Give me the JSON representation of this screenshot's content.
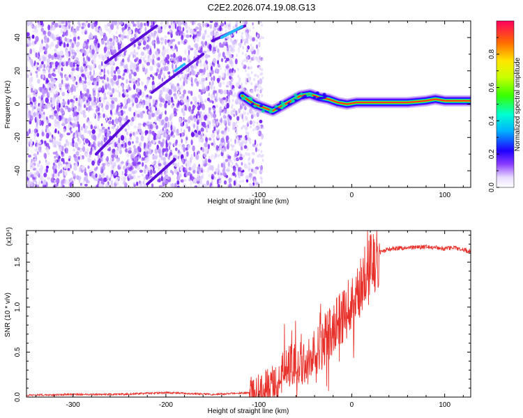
{
  "title": "C2E2.2026.074.19.08.G13",
  "chart_data": [
    {
      "type": "heatmap",
      "name": "spectrogram",
      "xlabel": "Height of straight line (km)",
      "ylabel": "Frequency (Hz)",
      "xlim": [
        -350,
        128
      ],
      "ylim": [
        -50,
        50
      ],
      "xticks": [
        -300,
        -200,
        -100,
        0,
        100
      ],
      "xtick_labels": [
        "-300",
        "-200",
        "-100",
        "0",
        "100"
      ],
      "yticks": [
        -40,
        -20,
        0,
        20,
        40
      ],
      "ytick_labels": [
        "-40",
        "-20",
        "0",
        "20",
        "40"
      ],
      "noise_region_km": [
        -350,
        -100
      ],
      "diagonal_streaks": [
        {
          "from": [
            -265,
            25
          ],
          "to": [
            -210,
            47
          ]
        },
        {
          "from": [
            -215,
            7
          ],
          "to": [
            -160,
            30
          ]
        },
        {
          "from": [
            -150,
            38
          ],
          "to": [
            -115,
            47
          ]
        },
        {
          "from": [
            -275,
            -30
          ],
          "to": [
            -240,
            -10
          ]
        },
        {
          "from": [
            -220,
            -48
          ],
          "to": [
            -190,
            -33
          ]
        }
      ],
      "signal_track": {
        "x": [
          -118,
          -105,
          -95,
          -85,
          -75,
          -65,
          -55,
          -45,
          -35,
          -25,
          -15,
          -5,
          5,
          20,
          40,
          60,
          80,
          90,
          100,
          128
        ],
        "y": [
          5,
          0,
          -2,
          -4,
          -1,
          2,
          5,
          6,
          4,
          3,
          1,
          0,
          1,
          1,
          1,
          1,
          2,
          3,
          2,
          2
        ]
      },
      "colorbar": {
        "label": "Normalized spectral amplitude",
        "range": [
          0,
          1
        ],
        "ticks": [
          0.0,
          0.2,
          0.4,
          0.6,
          0.8
        ],
        "tick_labels": [
          "0.0",
          "0.2",
          "0.4",
          "0.6",
          "0.8"
        ]
      }
    },
    {
      "type": "line",
      "name": "snr",
      "xlabel": "Height of straight line (km)",
      "ylabel": "SNR (10 * v/v)",
      "scale_label": "(x10⁴)",
      "xlim": [
        -350,
        128
      ],
      "ylim": [
        0,
        1.85
      ],
      "xticks": [
        -300,
        -200,
        -100,
        0,
        100
      ],
      "xtick_labels": [
        "-300",
        "-200",
        "-100",
        "0",
        "100"
      ],
      "yticks": [
        0.0,
        0.5,
        1.0,
        1.5
      ],
      "ytick_labels": [
        "0.0",
        "0.5",
        "1.0",
        "1.5"
      ],
      "color": "#e8302a",
      "series": [
        {
          "name": "SNR",
          "x": [
            -350,
            -300,
            -250,
            -200,
            -150,
            -110,
            -100,
            -90,
            -80,
            -70,
            -60,
            -50,
            -40,
            -30,
            -20,
            -10,
            0,
            10,
            20,
            30,
            40,
            60,
            80,
            100,
            110,
            128
          ],
          "y": [
            0.02,
            0.03,
            0.03,
            0.05,
            0.03,
            0.05,
            0.08,
            0.12,
            0.2,
            0.35,
            0.35,
            0.42,
            0.5,
            0.6,
            0.75,
            0.9,
            1.05,
            1.25,
            1.45,
            1.6,
            1.65,
            1.66,
            1.67,
            1.65,
            1.66,
            1.62
          ]
        }
      ]
    }
  ]
}
